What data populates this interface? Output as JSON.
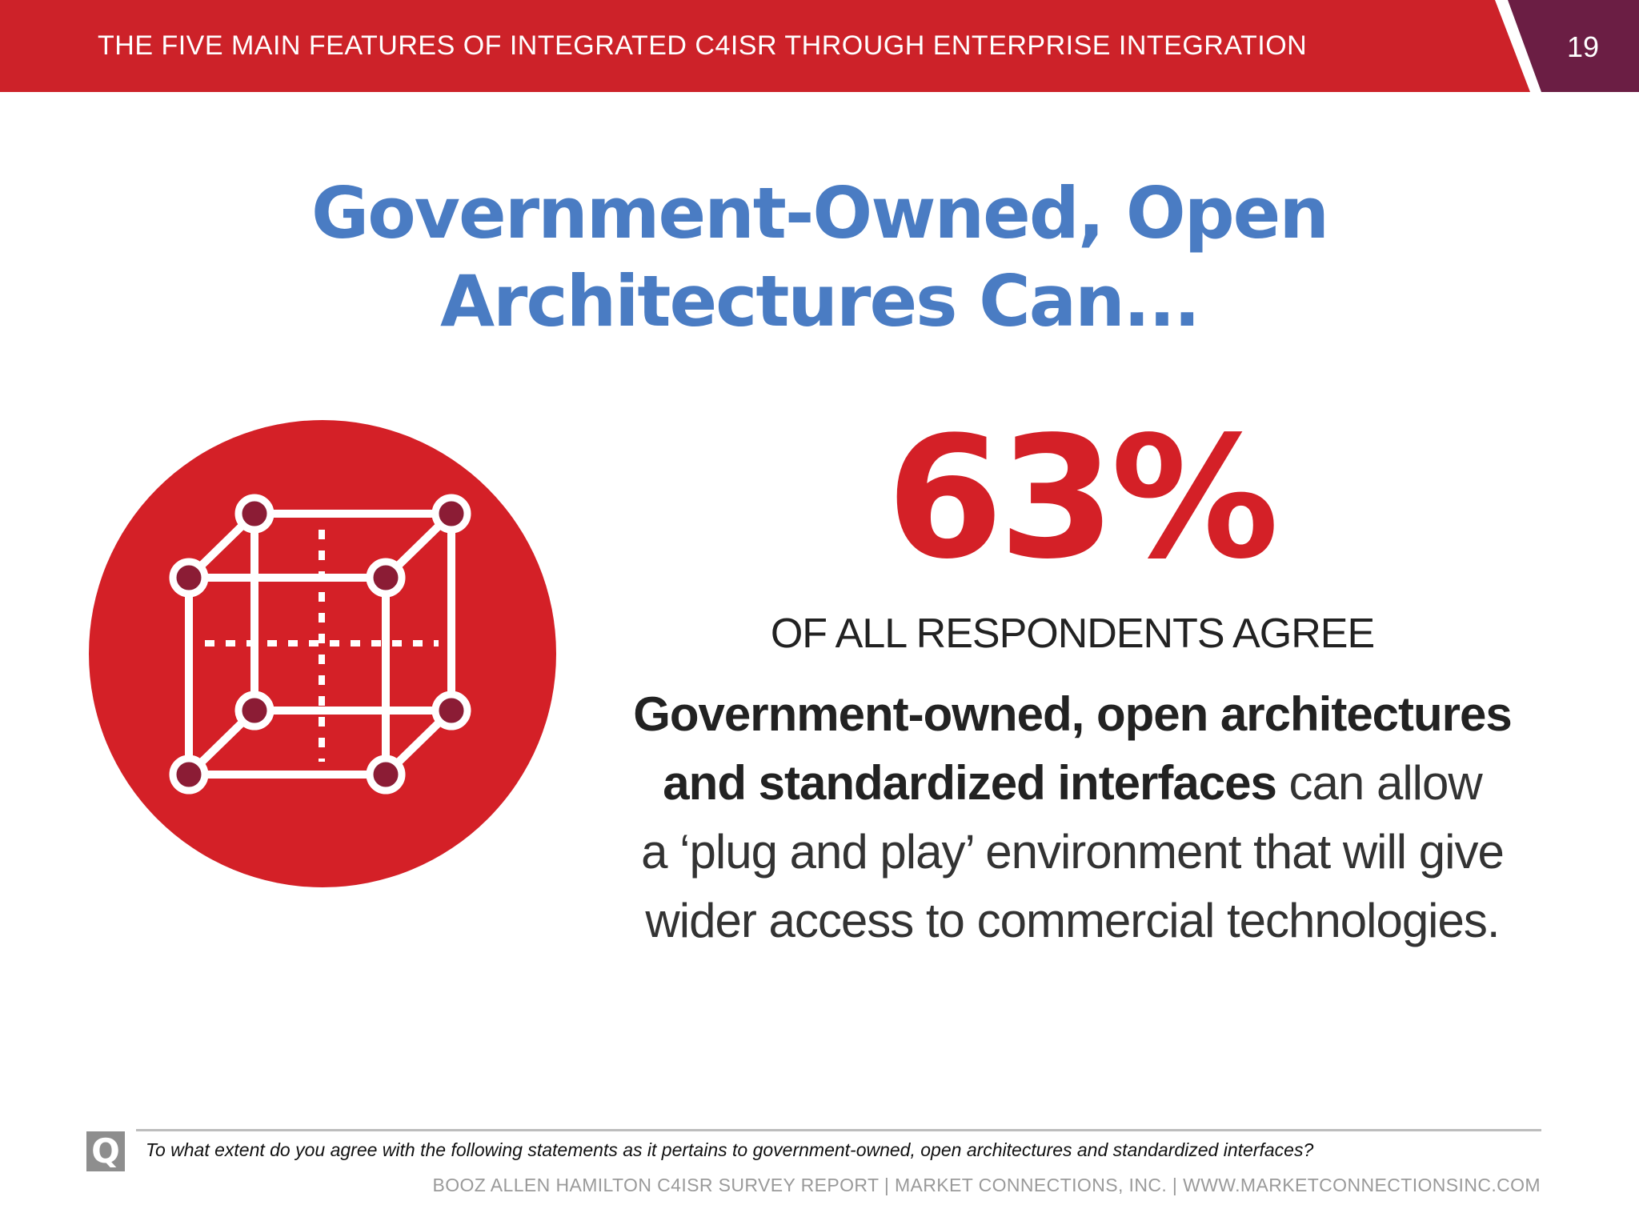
{
  "header": {
    "title": "THE FIVE MAIN FEATURES OF INTEGRATED C4ISR THROUGH ENTERPRISE INTEGRATION",
    "page_number": "19",
    "colors": {
      "band": "#cd2229",
      "corner": "#6b1e44"
    }
  },
  "main": {
    "title_line1": "Government-Owned, Open",
    "title_line2": "Architectures Can...",
    "icon": "open-architecture-cube-icon",
    "stat": {
      "value": "63%",
      "caption": "OF ALL RESPONDENTS AGREE"
    },
    "statement": {
      "bold_line1": "Government-owned, open architectures",
      "bold_line2": "and standardized interfaces",
      "rest_line2": " can allow",
      "line3": "a ‘plug and play’ environment that will give",
      "line4": "wider access to commercial technologies."
    },
    "colors": {
      "title": "#4a7cc3",
      "accent": "#d42027"
    }
  },
  "footer": {
    "q_label": "Q",
    "question": "To what extent do you agree with the following statements as it pertains to government-owned, open architectures and standardized interfaces?",
    "credits": "BOOZ ALLEN HAMILTON C4ISR SURVEY REPORT   |   MARKET CONNECTIONS, INC.   |   WWW.MARKETCONNECTIONSINC.COM"
  }
}
